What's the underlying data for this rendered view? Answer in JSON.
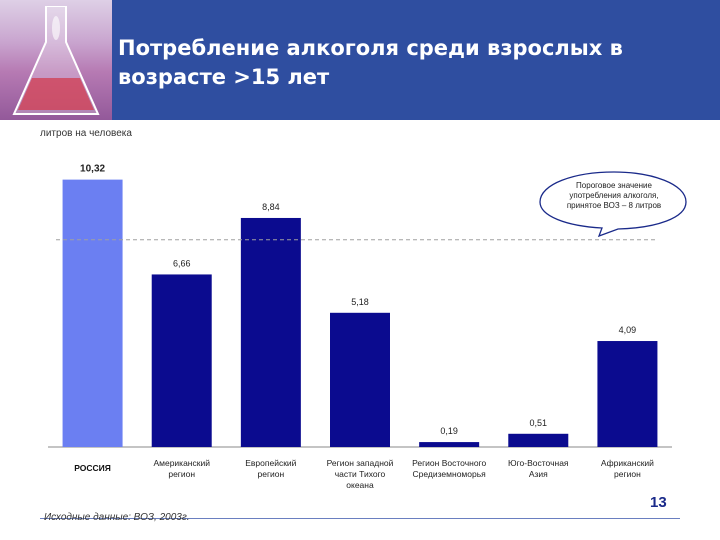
{
  "header": {
    "title_line1": "Потребление алкоголя среди взрослых в",
    "title_line2": "возрасте >15 лет"
  },
  "unit_label": "литров на человека",
  "callout": {
    "lines": [
      "Пороговое значение",
      "употребления алкоголя,",
      "принятое ВОЗ – 8 литров"
    ]
  },
  "source": "Исходные данные: ВОЗ, 2003г.",
  "page_number": "13",
  "colors": {
    "header_bg": "#2f4ea0",
    "russia_bar": "#6b7ff2",
    "region_bar": "#0b0b8f",
    "threshold_line": "#a0a0a0"
  },
  "chart_data": {
    "type": "bar",
    "title": "Потребление алкоголя среди взрослых в возрасте >15 лет",
    "ylabel": "литров на человека",
    "categories": [
      [
        "РОССИЯ"
      ],
      [
        "Американский",
        "регион"
      ],
      [
        "Европейский",
        "регион"
      ],
      [
        "Регион западной",
        "части Тихого",
        "океана"
      ],
      [
        "Регион Восточного",
        "Средиземноморья"
      ],
      [
        "Юго-Восточная",
        "Азия"
      ],
      [
        "Африканский",
        "регион"
      ]
    ],
    "values": [
      10.32,
      6.66,
      8.84,
      5.18,
      0.19,
      0.51,
      4.09
    ],
    "value_labels": [
      "10,32",
      "6,66",
      "8,84",
      "5,18",
      "0,19",
      "0,51",
      "4,09"
    ],
    "threshold": 8,
    "ylim": [
      0,
      11
    ],
    "grid": false,
    "legend": "none"
  }
}
